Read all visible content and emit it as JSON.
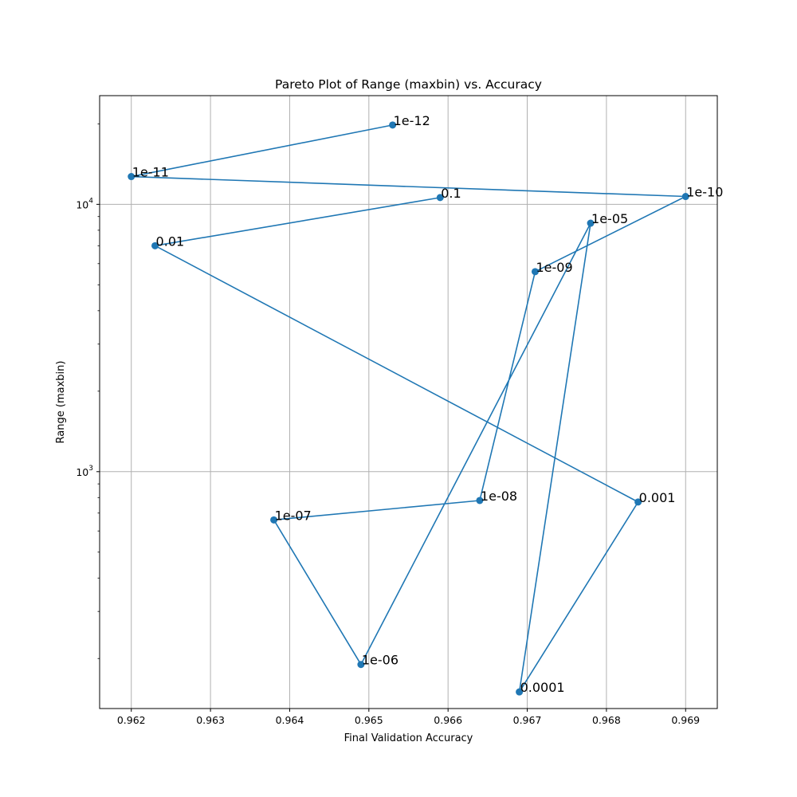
{
  "chart_data": {
    "type": "line",
    "title": "Pareto Plot of Range (maxbin) vs. Accuracy",
    "xlabel": "Final Validation Accuracy",
    "ylabel": "Range (maxbin)",
    "x_scale": "linear",
    "y_scale": "log",
    "xlim": [
      0.9616,
      0.9694
    ],
    "ylim": [
      130,
      25500
    ],
    "grid": true,
    "marker": "circle",
    "line_color": "#1f77b4",
    "x_ticks": [
      {
        "value": 0.962,
        "label": "0.962"
      },
      {
        "value": 0.963,
        "label": "0.963"
      },
      {
        "value": 0.964,
        "label": "0.964"
      },
      {
        "value": 0.965,
        "label": "0.965"
      },
      {
        "value": 0.966,
        "label": "0.966"
      },
      {
        "value": 0.967,
        "label": "0.967"
      },
      {
        "value": 0.968,
        "label": "0.968"
      },
      {
        "value": 0.969,
        "label": "0.969"
      }
    ],
    "y_major_ticks": [
      {
        "value": 1000,
        "base": "10",
        "exp": "3"
      },
      {
        "value": 10000,
        "base": "10",
        "exp": "4"
      }
    ],
    "y_minor_ticks": [
      200,
      300,
      400,
      500,
      600,
      700,
      800,
      900,
      2000,
      3000,
      4000,
      5000,
      6000,
      7000,
      8000,
      9000,
      20000
    ],
    "points": [
      {
        "label": "0.1",
        "x": 0.9659,
        "y": 10600
      },
      {
        "label": "0.01",
        "x": 0.9623,
        "y": 7000
      },
      {
        "label": "0.001",
        "x": 0.9684,
        "y": 770
      },
      {
        "label": "0.0001",
        "x": 0.9669,
        "y": 150
      },
      {
        "label": "1e-05",
        "x": 0.9678,
        "y": 8500
      },
      {
        "label": "1e-06",
        "x": 0.9649,
        "y": 190
      },
      {
        "label": "1e-07",
        "x": 0.9638,
        "y": 660
      },
      {
        "label": "1e-08",
        "x": 0.9664,
        "y": 780
      },
      {
        "label": "1e-09",
        "x": 0.9671,
        "y": 5600
      },
      {
        "label": "1e-10",
        "x": 0.969,
        "y": 10700
      },
      {
        "label": "1e-11",
        "x": 0.962,
        "y": 12700
      },
      {
        "label": "1e-12",
        "x": 0.9653,
        "y": 19800
      }
    ]
  }
}
